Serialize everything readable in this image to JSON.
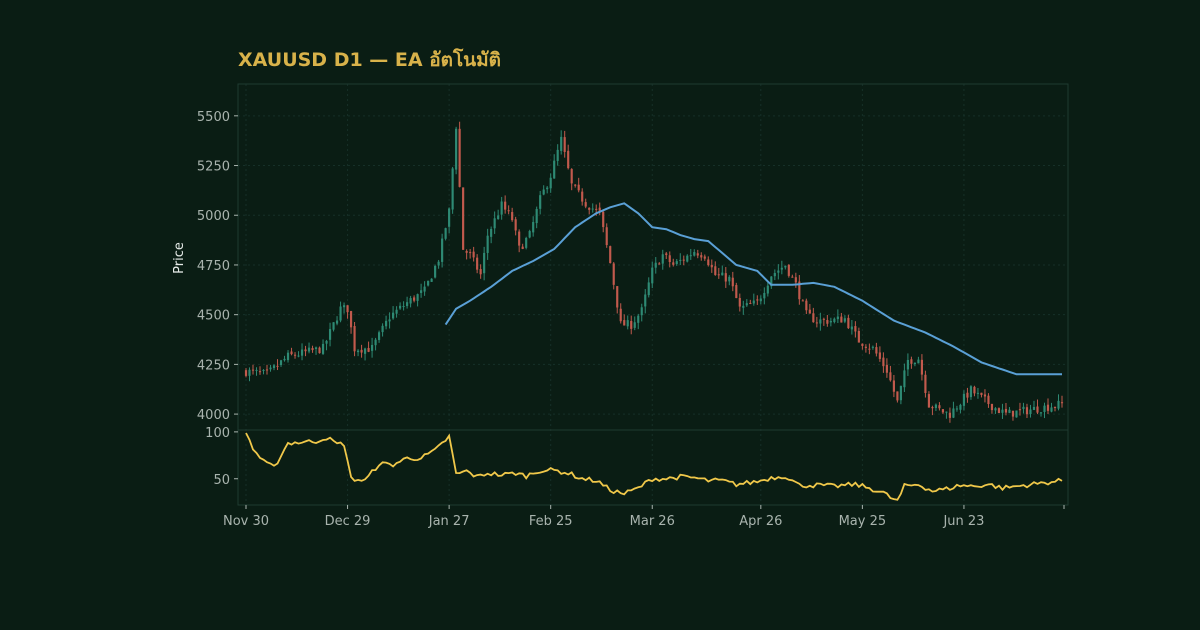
{
  "colors": {
    "background": "#0a1d14",
    "title": "#d8b24a",
    "axis_text": "#a9b4ae",
    "ylabel_text": "#e6ebe8",
    "up_candle": "#2e8a74",
    "down_candle": "#c25a4d",
    "ma_line": "#5aa0d6",
    "oscillator_line": "#f0c84a",
    "panel_border": "#1f3a31",
    "grid": "#163028"
  },
  "chart_data": {
    "type": "candlestick",
    "title": "XAUUSD D1 — EA อัตโนมัติ",
    "ylabel": "Price",
    "price_ylim": [
      3920,
      5660
    ],
    "price_yticks": [
      4000,
      4250,
      4500,
      4750,
      5000,
      5250,
      5500
    ],
    "indicator_ylim": [
      22,
      102
    ],
    "indicator_yticks": [
      50,
      100
    ],
    "x_tick_labels": [
      "Nov 30",
      "Dec 29",
      "Jan 27",
      "Feb 25",
      "Mar 26",
      "Apr 26",
      "May 25",
      "Jun 23"
    ],
    "x_tick_index": [
      0,
      29,
      58,
      87,
      116,
      147,
      176,
      205
    ],
    "grid": true,
    "close_anchors": [
      [
        0,
        4215
      ],
      [
        6,
        4200
      ],
      [
        12,
        4290
      ],
      [
        22,
        4330
      ],
      [
        25,
        4450
      ],
      [
        27,
        4530
      ],
      [
        29,
        4530
      ],
      [
        31,
        4330
      ],
      [
        36,
        4330
      ],
      [
        41,
        4490
      ],
      [
        46,
        4560
      ],
      [
        51,
        4620
      ],
      [
        55,
        4780
      ],
      [
        58,
        5020
      ],
      [
        60,
        5450
      ],
      [
        62,
        4830
      ],
      [
        64,
        4800
      ],
      [
        67,
        4700
      ],
      [
        69,
        4900
      ],
      [
        73,
        5050
      ],
      [
        76,
        4980
      ],
      [
        78,
        4830
      ],
      [
        81,
        4900
      ],
      [
        84,
        5080
      ],
      [
        87,
        5200
      ],
      [
        90,
        5380
      ],
      [
        93,
        5150
      ],
      [
        97,
        5060
      ],
      [
        101,
        5010
      ],
      [
        104,
        4760
      ],
      [
        107,
        4450
      ],
      [
        110,
        4450
      ],
      [
        113,
        4520
      ],
      [
        116,
        4720
      ],
      [
        119,
        4800
      ],
      [
        122,
        4750
      ],
      [
        125,
        4780
      ],
      [
        128,
        4820
      ],
      [
        131,
        4800
      ],
      [
        134,
        4700
      ],
      [
        138,
        4680
      ],
      [
        141,
        4530
      ],
      [
        146,
        4560
      ],
      [
        150,
        4700
      ],
      [
        154,
        4750
      ],
      [
        157,
        4650
      ],
      [
        160,
        4500
      ],
      [
        163,
        4470
      ],
      [
        167,
        4470
      ],
      [
        171,
        4480
      ],
      [
        175,
        4370
      ],
      [
        179,
        4330
      ],
      [
        183,
        4220
      ],
      [
        186,
        4060
      ],
      [
        189,
        4270
      ],
      [
        192,
        4280
      ],
      [
        195,
        4050
      ],
      [
        198,
        4020
      ],
      [
        201,
        4000
      ],
      [
        204,
        4060
      ],
      [
        207,
        4120
      ],
      [
        210,
        4080
      ],
      [
        214,
        4030
      ],
      [
        217,
        4000
      ],
      [
        220,
        4010
      ],
      [
        233,
        4050
      ]
    ],
    "moving_average": {
      "start_index": 57,
      "anchors": [
        [
          57,
          4450
        ],
        [
          60,
          4530
        ],
        [
          64,
          4570
        ],
        [
          70,
          4640
        ],
        [
          76,
          4720
        ],
        [
          82,
          4770
        ],
        [
          88,
          4830
        ],
        [
          94,
          4940
        ],
        [
          100,
          5010
        ],
        [
          104,
          5040
        ],
        [
          108,
          5060
        ],
        [
          112,
          5010
        ],
        [
          116,
          4940
        ],
        [
          120,
          4930
        ],
        [
          124,
          4900
        ],
        [
          128,
          4880
        ],
        [
          132,
          4870
        ],
        [
          136,
          4810
        ],
        [
          140,
          4750
        ],
        [
          146,
          4720
        ],
        [
          150,
          4650
        ],
        [
          156,
          4650
        ],
        [
          162,
          4660
        ],
        [
          168,
          4640
        ],
        [
          176,
          4570
        ],
        [
          185,
          4470
        ],
        [
          194,
          4410
        ],
        [
          202,
          4340
        ],
        [
          210,
          4260
        ],
        [
          220,
          4200
        ],
        [
          233,
          4200
        ]
      ]
    },
    "oscillator_anchors": [
      [
        0,
        100
      ],
      [
        2,
        82
      ],
      [
        5,
        68
      ],
      [
        8,
        62
      ],
      [
        12,
        88
      ],
      [
        16,
        89
      ],
      [
        20,
        90
      ],
      [
        23,
        94
      ],
      [
        26,
        87
      ],
      [
        28,
        87
      ],
      [
        30,
        50
      ],
      [
        34,
        48
      ],
      [
        38,
        66
      ],
      [
        42,
        65
      ],
      [
        46,
        72
      ],
      [
        50,
        72
      ],
      [
        54,
        80
      ],
      [
        58,
        95
      ],
      [
        60,
        55
      ],
      [
        63,
        58
      ],
      [
        66,
        52
      ],
      [
        69,
        56
      ],
      [
        73,
        54
      ],
      [
        77,
        56
      ],
      [
        80,
        53
      ],
      [
        84,
        59
      ],
      [
        88,
        59
      ],
      [
        92,
        56
      ],
      [
        96,
        50
      ],
      [
        100,
        48
      ],
      [
        104,
        38
      ],
      [
        108,
        34
      ],
      [
        112,
        40
      ],
      [
        116,
        50
      ],
      [
        120,
        50
      ],
      [
        124,
        52
      ],
      [
        128,
        51
      ],
      [
        132,
        48
      ],
      [
        136,
        48
      ],
      [
        140,
        44
      ],
      [
        146,
        47
      ],
      [
        150,
        51
      ],
      [
        154,
        53
      ],
      [
        158,
        43
      ],
      [
        164,
        43
      ],
      [
        168,
        42
      ],
      [
        174,
        44
      ],
      [
        178,
        40
      ],
      [
        182,
        35
      ],
      [
        184,
        30
      ],
      [
        186,
        26
      ],
      [
        188,
        42
      ],
      [
        192,
        44
      ],
      [
        196,
        37
      ],
      [
        200,
        39
      ],
      [
        204,
        43
      ],
      [
        208,
        42
      ],
      [
        212,
        44
      ],
      [
        216,
        40
      ],
      [
        220,
        42
      ],
      [
        233,
        48
      ]
    ],
    "n_bars": 234
  }
}
